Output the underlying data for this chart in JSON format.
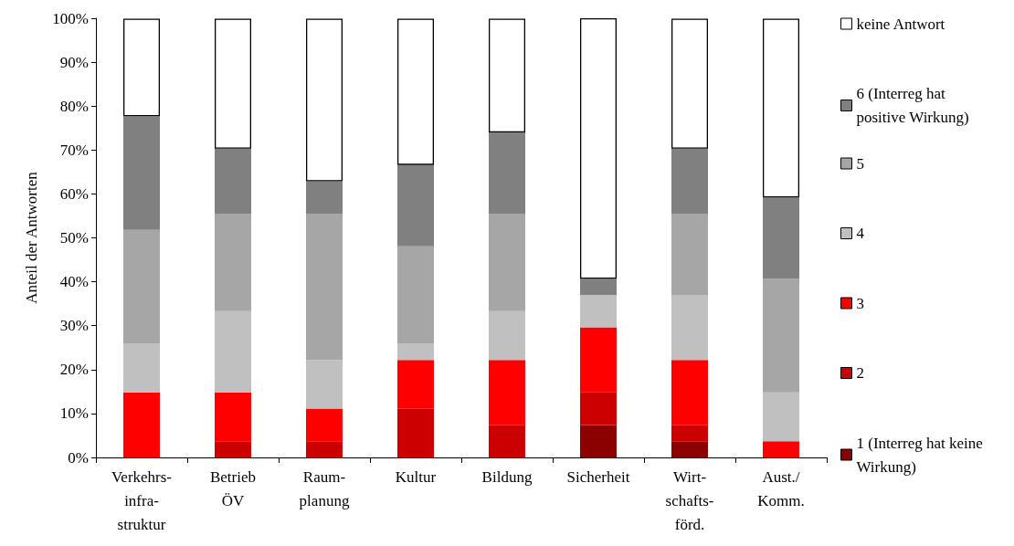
{
  "chart_data": {
    "type": "bar",
    "stacked": true,
    "ylabel": "Anteil der Antworten",
    "categories": [
      "Verkehrs-\ninfra-\nstruktur",
      "Betrieb\nÖV",
      "Raum-\nplanung",
      "Kultur",
      "Bildung",
      "Sicherheit",
      "Wirt-\nschafts-\nförd.",
      "Aust./\nKomm."
    ],
    "series": [
      {
        "name": "1 (Interreg hat keine Wirkung)",
        "color": "#8b0000",
        "values": [
          0,
          0,
          0,
          0,
          0,
          7.4,
          3.7,
          0
        ]
      },
      {
        "name": "2",
        "color": "#cc0000",
        "values": [
          0,
          3.7,
          3.7,
          11.1,
          7.4,
          7.4,
          3.7,
          0
        ]
      },
      {
        "name": "3",
        "color": "#ff0000",
        "values": [
          14.8,
          11.1,
          7.4,
          11.1,
          14.8,
          14.8,
          14.8,
          3.7
        ]
      },
      {
        "name": "4",
        "color": "#c0c0c0",
        "values": [
          11.1,
          18.5,
          11.1,
          3.7,
          11.1,
          7.4,
          14.8,
          11.1
        ]
      },
      {
        "name": "5",
        "color": "#a6a6a6",
        "values": [
          25.9,
          22.2,
          33.3,
          22.2,
          22.2,
          0,
          18.5,
          25.9
        ]
      },
      {
        "name": "6 (Interreg hat positive Wirkung)",
        "color": "#808080",
        "values": [
          25.9,
          14.8,
          7.4,
          18.5,
          18.5,
          3.7,
          14.8,
          18.5
        ]
      },
      {
        "name": "keine Antwort",
        "color": "#ffffff",
        "values": [
          22.2,
          29.6,
          37.0,
          33.3,
          25.9,
          59.3,
          29.6,
          40.7
        ]
      }
    ],
    "ylim": [
      0,
      100
    ],
    "yticks": [
      {
        "value": 0,
        "label": "0%"
      },
      {
        "value": 10,
        "label": "10%"
      },
      {
        "value": 20,
        "label": "20%"
      },
      {
        "value": 30,
        "label": "30%"
      },
      {
        "value": 40,
        "label": "40%"
      },
      {
        "value": 50,
        "label": "50%"
      },
      {
        "value": 60,
        "label": "60%"
      },
      {
        "value": 70,
        "label": "70%"
      },
      {
        "value": 80,
        "label": "80%"
      },
      {
        "value": 90,
        "label": "90%"
      },
      {
        "value": 100,
        "label": "100%"
      }
    ],
    "grid": false,
    "legend": "right"
  }
}
